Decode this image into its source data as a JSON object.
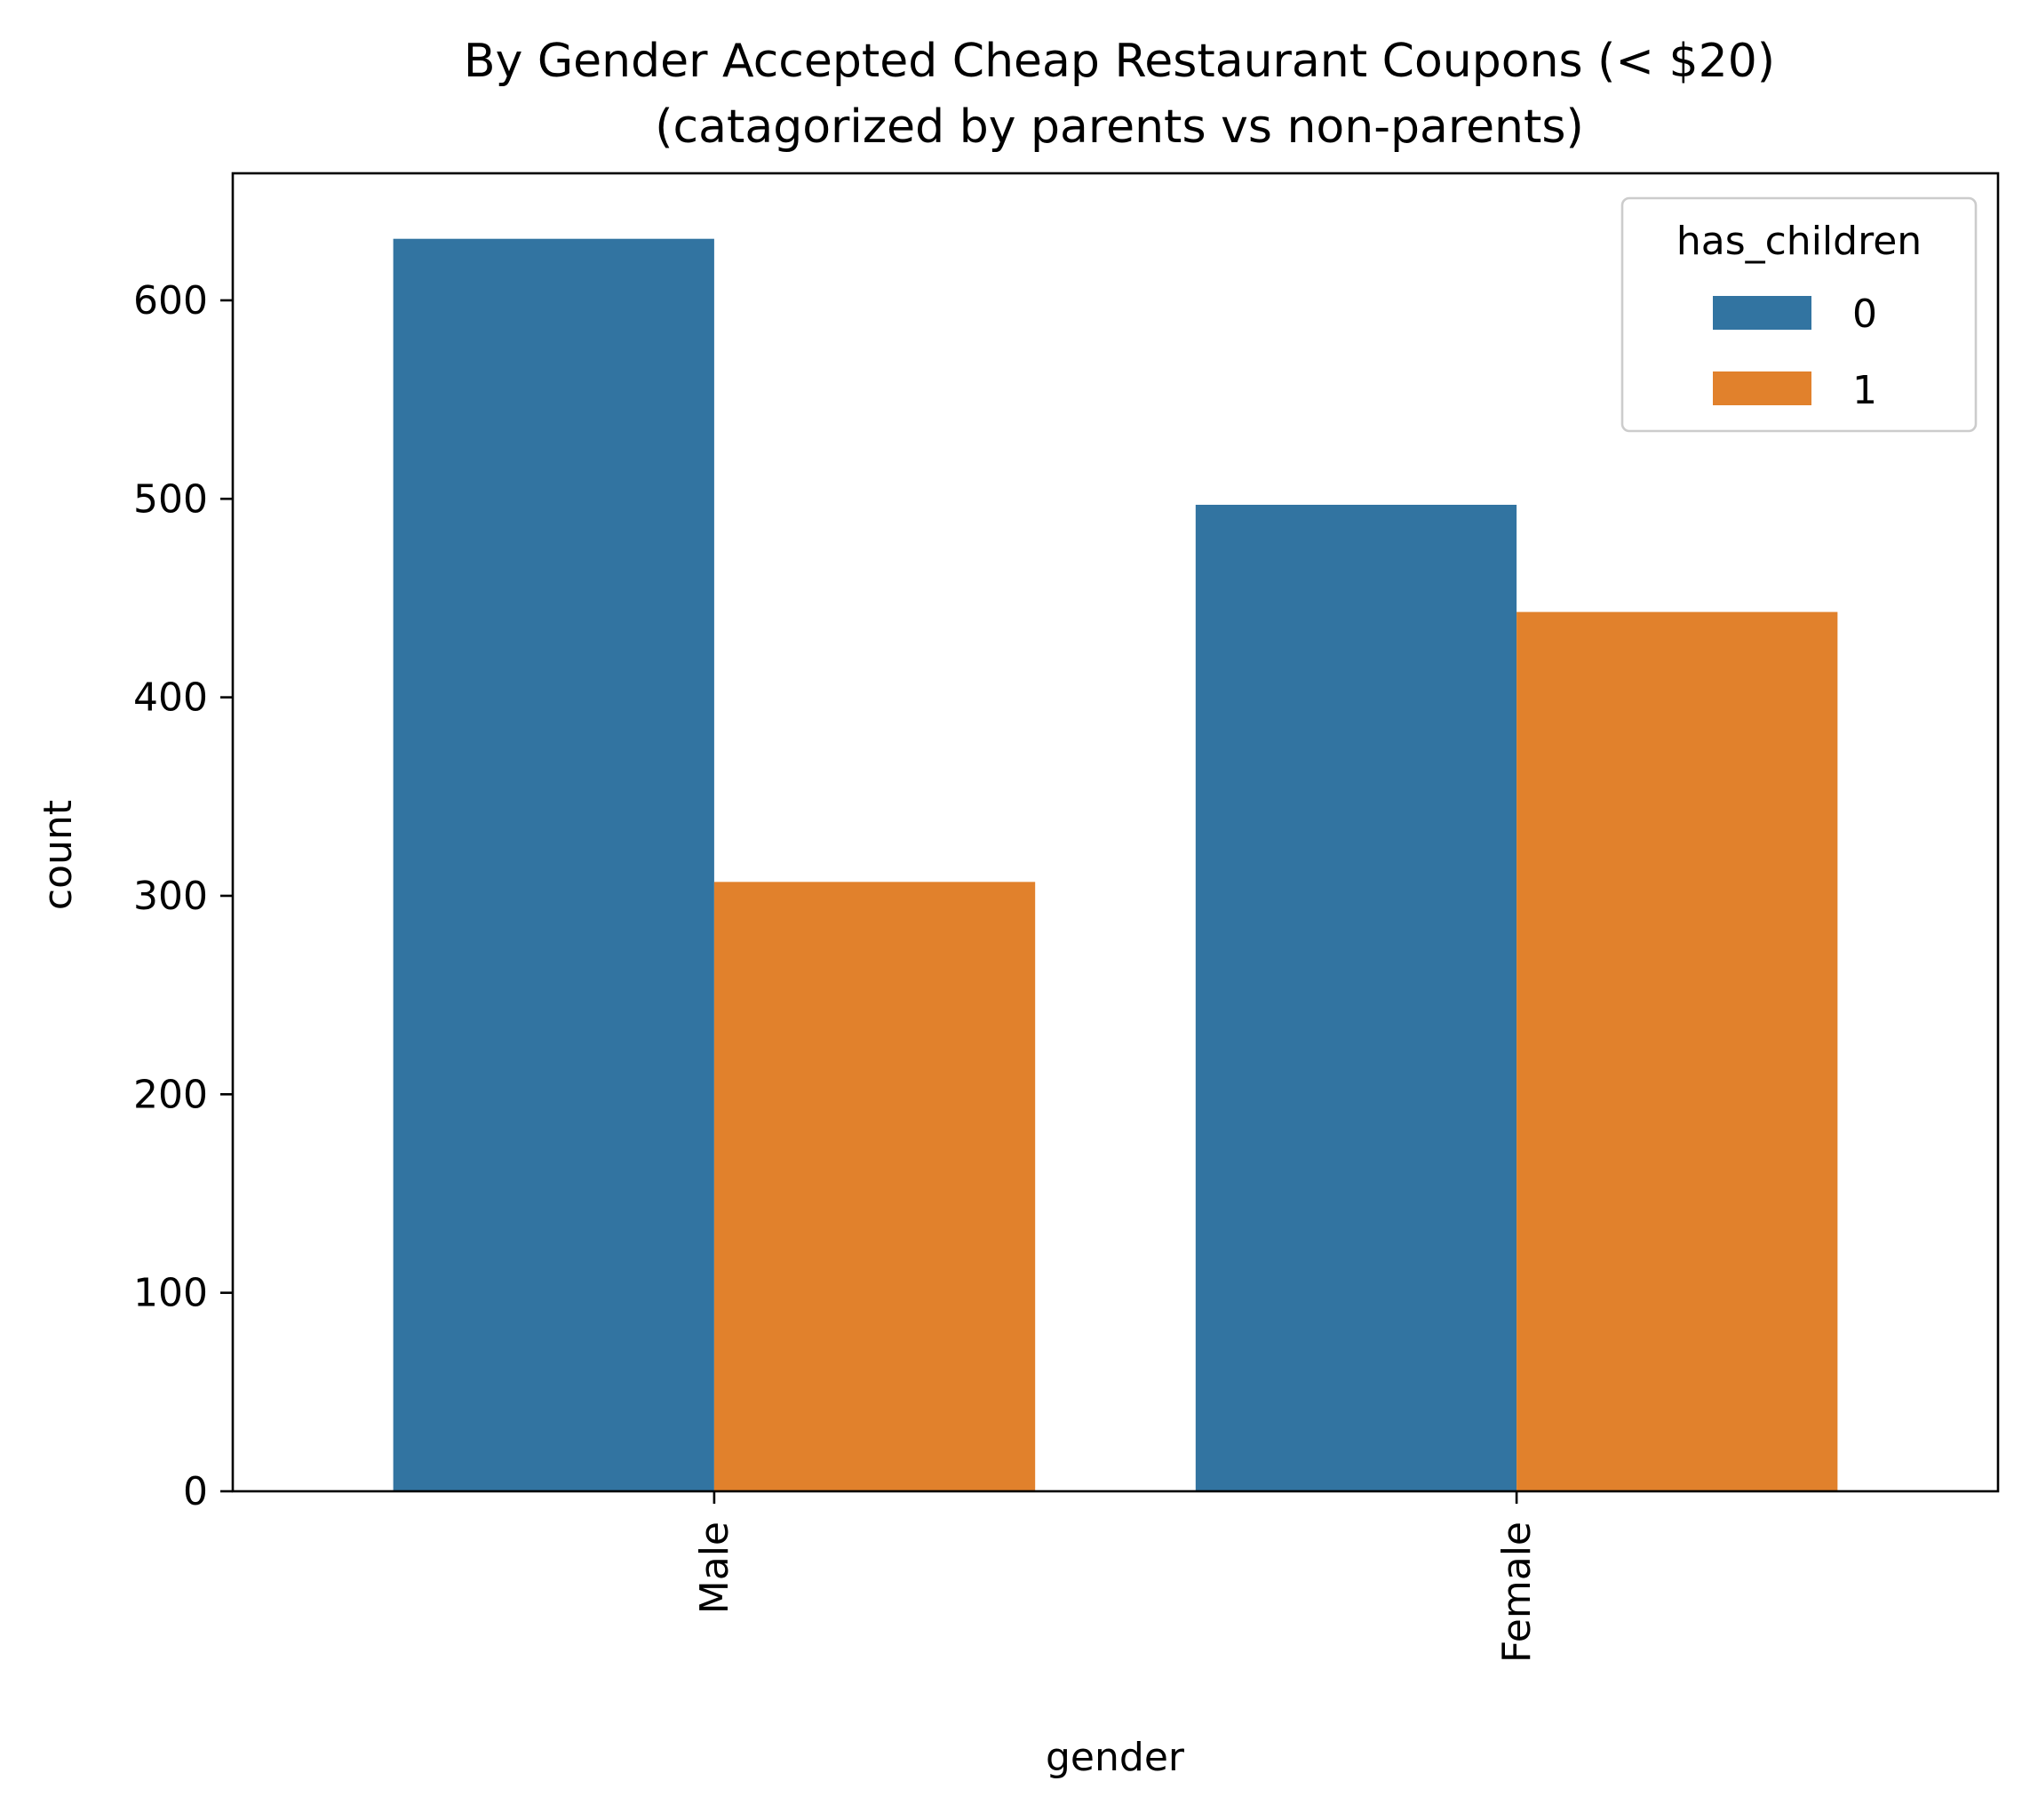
{
  "chart_data": {
    "type": "bar",
    "title": "By Gender Accepted Cheap Restaurant Coupons (< $20)",
    "subtitle": "(catagorized by parents vs non-parents)",
    "xlabel": "gender",
    "ylabel": "count",
    "categories": [
      "Male",
      "Female"
    ],
    "series": [
      {
        "name": "0",
        "values": [
          631,
          497
        ],
        "color": "#3274a1"
      },
      {
        "name": "1",
        "values": [
          307,
          443
        ],
        "color": "#e1812c"
      }
    ],
    "ylim": [
      0,
      664
    ],
    "yticks": [
      0,
      100,
      200,
      300,
      400,
      500,
      600
    ],
    "legend": {
      "title": "has_children",
      "placement": "top-right"
    },
    "grid": false
  }
}
